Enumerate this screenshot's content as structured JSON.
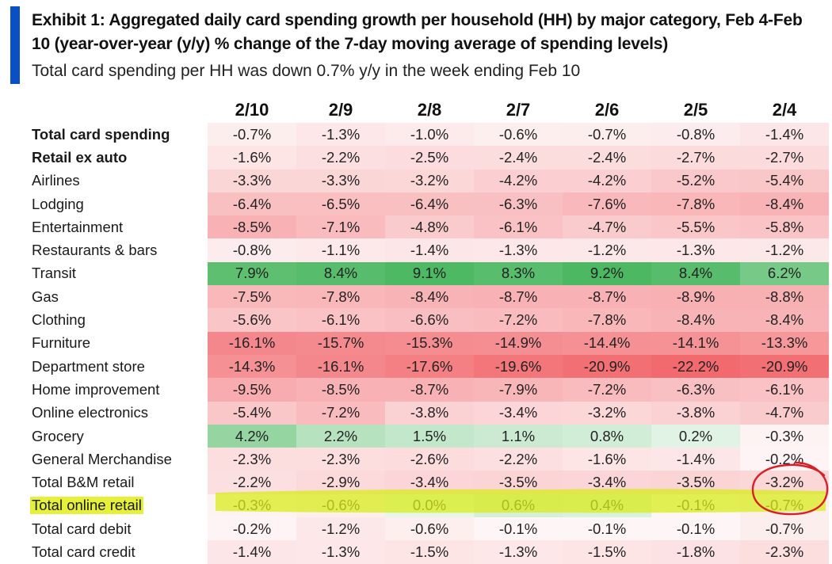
{
  "title": "Exhibit 1: Aggregated daily card spending growth per household (HH) by major category, Feb 4-Feb 10 (year-over-year (y/y) % change of the 7-day moving average of spending levels)",
  "subtitle": "Total card spending per HH was down 0.7% y/y in the week ending Feb 10",
  "colors": {
    "accent": "#0a4fc4",
    "positive": "#4cb861",
    "negative": "#f0585e",
    "highlight": "#d8ec1c",
    "annotation_circle": "#d91f26"
  },
  "chart_data": {
    "type": "table",
    "title": "Exhibit 1: Aggregated daily card spending growth per household (HH) by major category, Feb 4-Feb 10 (year-over-year (y/y) % change of the 7-day moving average of spending levels)",
    "subtitle": "Total card spending per HH was down 0.7% y/y in the week ending Feb 10",
    "columns": [
      "2/10",
      "2/9",
      "2/8",
      "2/7",
      "2/6",
      "2/5",
      "2/4"
    ],
    "rows": [
      {
        "label": "Total card spending",
        "bold": true,
        "values": [
          -0.7,
          -1.3,
          -1.0,
          -0.6,
          -0.7,
          -0.8,
          -1.4
        ]
      },
      {
        "label": "Retail ex auto",
        "bold": true,
        "values": [
          -1.6,
          -2.2,
          -2.5,
          -2.4,
          -2.4,
          -2.7,
          -2.7
        ]
      },
      {
        "label": "Airlines",
        "values": [
          -3.3,
          -3.3,
          -3.2,
          -4.2,
          -4.2,
          -5.2,
          -5.4
        ]
      },
      {
        "label": "Lodging",
        "values": [
          -6.4,
          -6.5,
          -6.4,
          -6.3,
          -7.6,
          -7.8,
          -8.4
        ]
      },
      {
        "label": "Entertainment",
        "values": [
          -8.5,
          -7.1,
          -4.8,
          -6.1,
          -4.7,
          -5.5,
          -5.8
        ]
      },
      {
        "label": "Restaurants & bars",
        "values": [
          -0.8,
          -1.1,
          -1.4,
          -1.3,
          -1.2,
          -1.3,
          -1.2
        ]
      },
      {
        "label": "Transit",
        "values": [
          7.9,
          8.4,
          9.1,
          8.3,
          9.2,
          8.4,
          6.2
        ]
      },
      {
        "label": "Gas",
        "values": [
          -7.5,
          -7.8,
          -8.4,
          -8.7,
          -8.7,
          -8.9,
          -8.8
        ]
      },
      {
        "label": "Clothing",
        "values": [
          -5.6,
          -6.1,
          -6.6,
          -7.2,
          -7.8,
          -8.4,
          -8.4
        ]
      },
      {
        "label": "Furniture",
        "values": [
          -16.1,
          -15.7,
          -15.3,
          -14.9,
          -14.4,
          -14.1,
          -13.3
        ]
      },
      {
        "label": "Department store",
        "values": [
          -14.3,
          -16.1,
          -17.6,
          -19.6,
          -20.9,
          -22.2,
          -20.9
        ]
      },
      {
        "label": "Home improvement",
        "values": [
          -9.5,
          -8.5,
          -8.7,
          -7.9,
          -7.2,
          -6.3,
          -6.1
        ]
      },
      {
        "label": "Online electronics",
        "values": [
          -5.4,
          -7.2,
          -3.8,
          -3.4,
          -3.2,
          -3.8,
          -4.7
        ]
      },
      {
        "label": "Grocery",
        "values": [
          4.2,
          2.2,
          1.5,
          1.1,
          0.8,
          0.2,
          -0.3
        ]
      },
      {
        "label": "General Merchandise",
        "values": [
          -2.3,
          -2.3,
          -2.6,
          -2.2,
          -1.6,
          -1.4,
          -0.2
        ]
      },
      {
        "label": "Total B&M retail",
        "values": [
          -2.2,
          -2.9,
          -3.4,
          -3.5,
          -3.4,
          -3.5,
          -3.2
        ]
      },
      {
        "label": "Total online retail",
        "highlight": true,
        "values": [
          -0.3,
          -0.6,
          0.0,
          0.6,
          0.4,
          -0.1,
          -0.7
        ]
      },
      {
        "label": "Total card debit",
        "values": [
          -0.2,
          -1.2,
          -0.6,
          -0.1,
          -0.1,
          -0.1,
          -0.7
        ]
      },
      {
        "label": "Total card credit",
        "values": [
          -1.4,
          -1.3,
          -1.5,
          -1.3,
          -1.5,
          -1.8,
          -2.3
        ]
      }
    ],
    "value_format": "percent_1dp",
    "color_scale": {
      "type": "diverging",
      "positive": "#4cb861",
      "negative": "#f0585e",
      "neutral": "#ffffff"
    }
  }
}
